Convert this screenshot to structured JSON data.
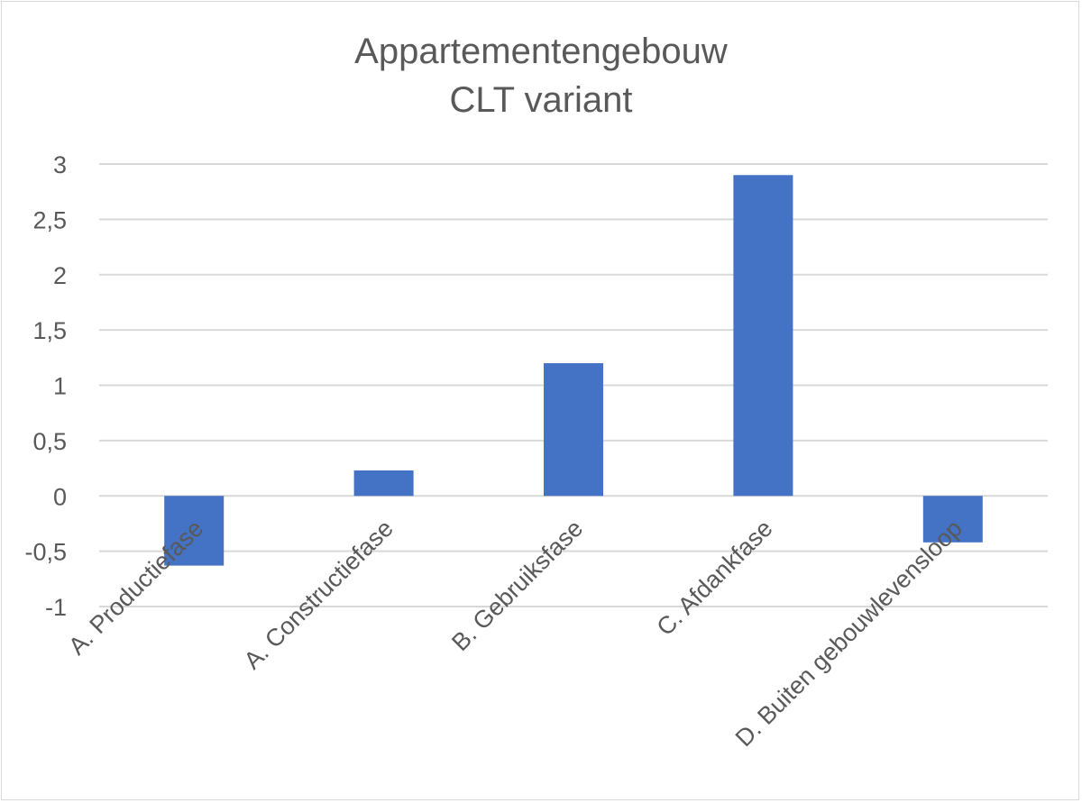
{
  "chart_data": {
    "type": "bar",
    "title_lines": [
      "Appartementengebouw",
      "CLT variant"
    ],
    "categories": [
      "A. Productiefase",
      "A. Constructiefase",
      "B. Gebruiksfase",
      "C. Afdankfase",
      "D. Buiten gebouwlevensloop"
    ],
    "values": [
      -0.63,
      0.23,
      1.2,
      2.9,
      -0.42
    ],
    "ylim": [
      -1,
      3
    ],
    "yticks": [
      "3",
      "2,5",
      "2",
      "1,5",
      "1",
      "0,5",
      "0",
      "-0,5",
      "-1"
    ],
    "ytick_values": [
      3,
      2.5,
      2,
      1.5,
      1,
      0.5,
      0,
      -0.5,
      -1
    ],
    "grid": true,
    "bar_color": "#4472c4",
    "grid_color": "#d9d9d9",
    "text_color": "#595959"
  }
}
